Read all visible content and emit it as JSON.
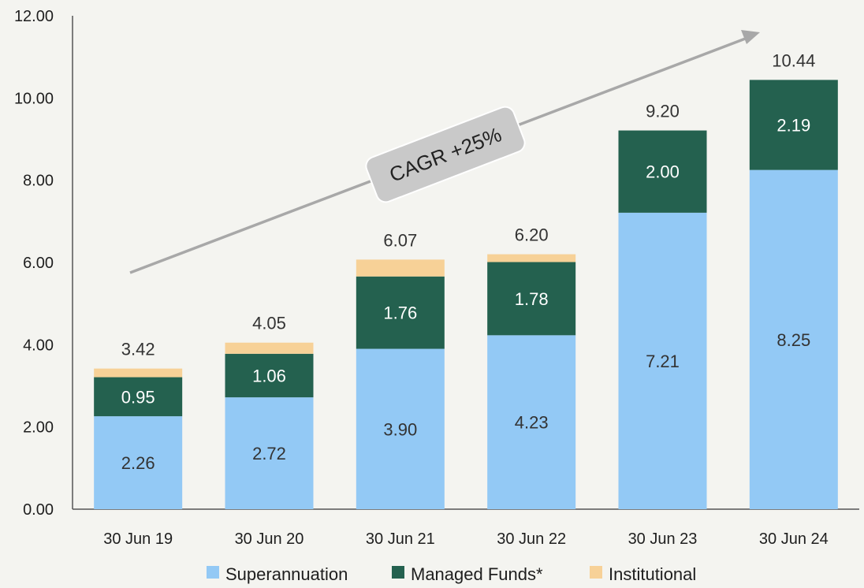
{
  "chart_data": {
    "type": "bar",
    "stacked": true,
    "categories": [
      "30 Jun 19",
      "30 Jun 20",
      "30 Jun 21",
      "30 Jun 22",
      "30 Jun 23",
      "30 Jun 24"
    ],
    "series": [
      {
        "name": "Superannuation",
        "values": [
          2.26,
          2.72,
          3.9,
          4.23,
          7.21,
          8.25
        ],
        "color": "#93c9f5",
        "labels": [
          "2.26",
          "2.72",
          "3.90",
          "4.23",
          "7.21",
          "8.25"
        ],
        "label_color": "#333333"
      },
      {
        "name": "Managed Funds*",
        "values": [
          0.95,
          1.06,
          1.76,
          1.78,
          2.0,
          2.19
        ],
        "color": "#24614f",
        "labels": [
          "0.95",
          "1.06",
          "1.76",
          "1.78",
          "2.00",
          "2.19"
        ],
        "label_color": "#ffffff"
      },
      {
        "name": "Institutional",
        "values": [
          0.21,
          0.27,
          0.41,
          0.19,
          0.0,
          0.0
        ],
        "color": "#f7d197",
        "labels": [
          "",
          "",
          "",
          "",
          "",
          ""
        ],
        "label_color": "#333333"
      }
    ],
    "totals": [
      "3.42",
      "4.05",
      "6.07",
      "6.20",
      "9.20",
      "10.44"
    ],
    "ylim": [
      0,
      12
    ],
    "yticks": [
      "0.00",
      "2.00",
      "4.00",
      "6.00",
      "8.00",
      "10.00",
      "12.00"
    ],
    "grid": false,
    "legend_position": "bottom",
    "annotation": {
      "text": "CAGR +25%",
      "arrow_color": "#a8a8a8",
      "badge_color": "#c9c9c9"
    }
  }
}
